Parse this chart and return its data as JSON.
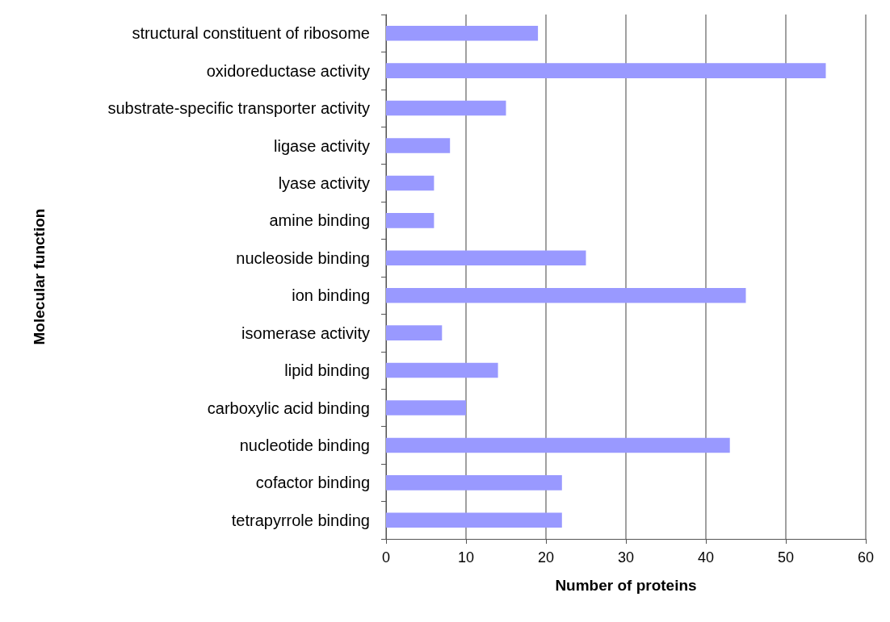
{
  "chart_data": {
    "type": "bar",
    "orientation": "horizontal",
    "xlabel": "Number of proteins",
    "ylabel": "Molecular function",
    "categories": [
      "structural constituent of ribosome",
      "oxidoreductase activity",
      "substrate-specific transporter activity",
      "ligase activity",
      "lyase activity",
      "amine binding",
      "nucleoside binding",
      "ion binding",
      "isomerase activity",
      "lipid binding",
      "carboxylic acid binding",
      "nucleotide binding",
      "cofactor binding",
      "tetrapyrrole binding"
    ],
    "values": [
      19,
      55,
      15,
      8,
      6,
      6,
      25,
      45,
      7,
      14,
      10,
      43,
      22,
      22
    ],
    "color": "#9999ff",
    "xlim": [
      0,
      60
    ],
    "xticks": [
      0,
      10,
      20,
      30,
      40,
      50,
      60
    ],
    "grid": "x"
  }
}
